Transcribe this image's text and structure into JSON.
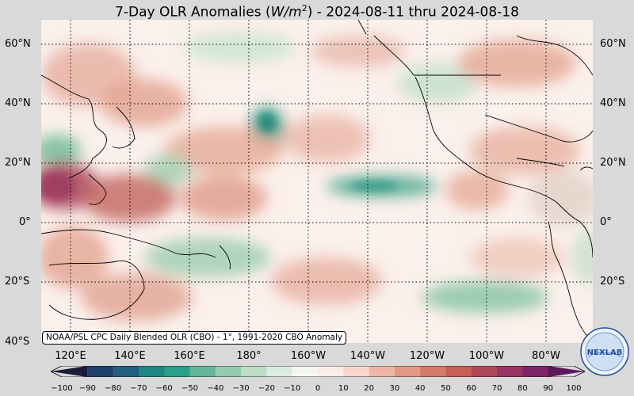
{
  "title": {
    "prefix": "7-Day OLR Anomalies (",
    "unit_var": "W/m",
    "unit_exp": "2",
    "suffix": ") - 2024-08-11 thru 2024-08-18"
  },
  "credit": "NOAA/PSL CPC Daily Blended OLR (CBO) - 1°, 1991-2020 CBO Anomaly",
  "lat_labels": [
    "60°N",
    "40°N",
    "20°N",
    "0°",
    "20°S",
    "40°S"
  ],
  "lon_labels": [
    "120°E",
    "140°E",
    "160°E",
    "180°",
    "160°W",
    "140°W",
    "120°W",
    "100°W",
    "80°W"
  ],
  "colorbar": {
    "ticks": [
      "−100",
      "−90",
      "−80",
      "−70",
      "−60",
      "−50",
      "−40",
      "−30",
      "−20",
      "−10",
      "0",
      "10",
      "20",
      "30",
      "40",
      "50",
      "60",
      "70",
      "80",
      "90",
      "100"
    ],
    "colors": [
      "#1b1b3a",
      "#1f3f6b",
      "#205f7e",
      "#1f8684",
      "#2aa08a",
      "#62b79a",
      "#93cbac",
      "#bcdcc4",
      "#dcece0",
      "#f2f7f3",
      "#fbeeea",
      "#f7d6cc",
      "#eeb6a6",
      "#e39885",
      "#d57a68",
      "#c55f57",
      "#b0485a",
      "#993563",
      "#7e2568",
      "#5c1a5c"
    ]
  },
  "logo_text": "NEXLAB",
  "colors": {
    "background": "#d9d9d9",
    "neutral": "#fbeeea"
  }
}
